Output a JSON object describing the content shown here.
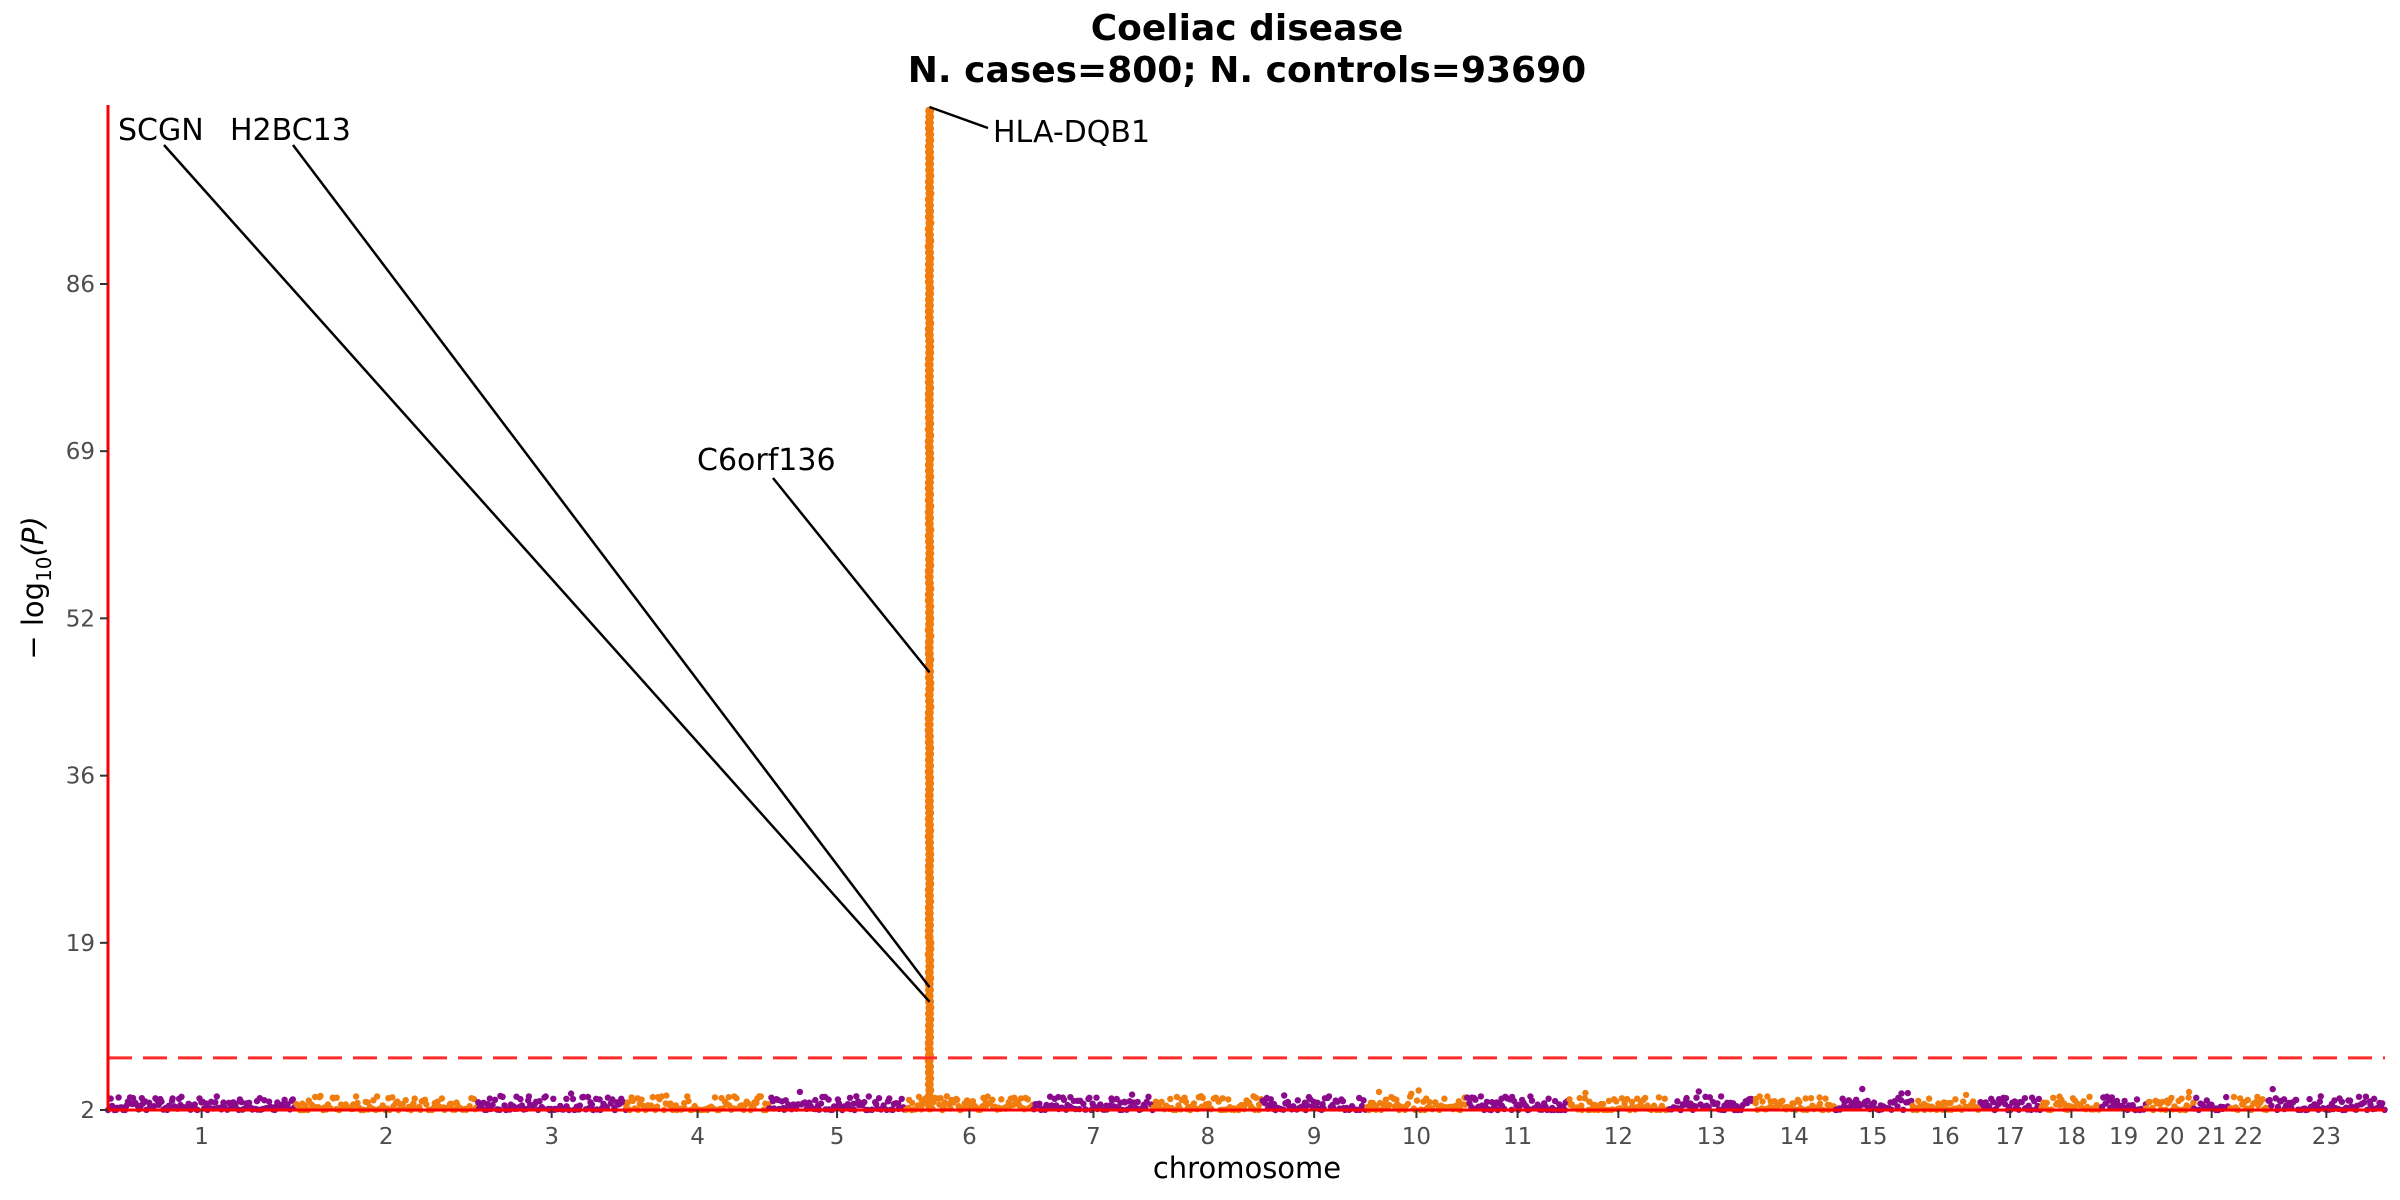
{
  "chart_data": {
    "type": "scatter",
    "subtype": "manhattan",
    "title": "Coeliac disease",
    "subtitle": "N. cases=800; N. controls=93690",
    "xlabel": "chromosome",
    "ylabel_prefix": "− log",
    "ylabel_sub": "10",
    "ylabel_suffix": "(P)",
    "yticks": [
      "2",
      "19",
      "36",
      "52",
      "69",
      "86"
    ],
    "ylim": [
      2,
      104
    ],
    "significance_threshold": 7.3,
    "chromosomes": [
      "1",
      "2",
      "3",
      "4",
      "5",
      "6",
      "7",
      "8",
      "9",
      "10",
      "11",
      "12",
      "13",
      "14",
      "15",
      "16",
      "17",
      "18",
      "19",
      "20",
      "21",
      "22",
      "23"
    ],
    "chromosome_widths": [
      249,
      242,
      198,
      190,
      181,
      171,
      159,
      145,
      138,
      134,
      135,
      133,
      114,
      107,
      102,
      90,
      83,
      80,
      59,
      64,
      47,
      51,
      156
    ],
    "colors": {
      "odd": "#8b0a8b",
      "even": "#f07d0e",
      "threshold": "#ff2a2a",
      "axis": "#ff0000"
    },
    "peak": {
      "chromosome": "6",
      "position_fraction": 0.19,
      "max_y": 104
    },
    "annotations": [
      {
        "label": "SCGN",
        "x_chr": "6",
        "x_frac": 0.19,
        "y": 13.0
      },
      {
        "label": "H2BC13",
        "x_chr": "6",
        "x_frac": 0.19,
        "y": 14.5
      },
      {
        "label": "C6orf136",
        "x_chr": "6",
        "x_frac": 0.19,
        "y": 46.5
      },
      {
        "label": "HLA-DQB1",
        "x_chr": "6",
        "x_frac": 0.19,
        "y": 104
      }
    ]
  }
}
